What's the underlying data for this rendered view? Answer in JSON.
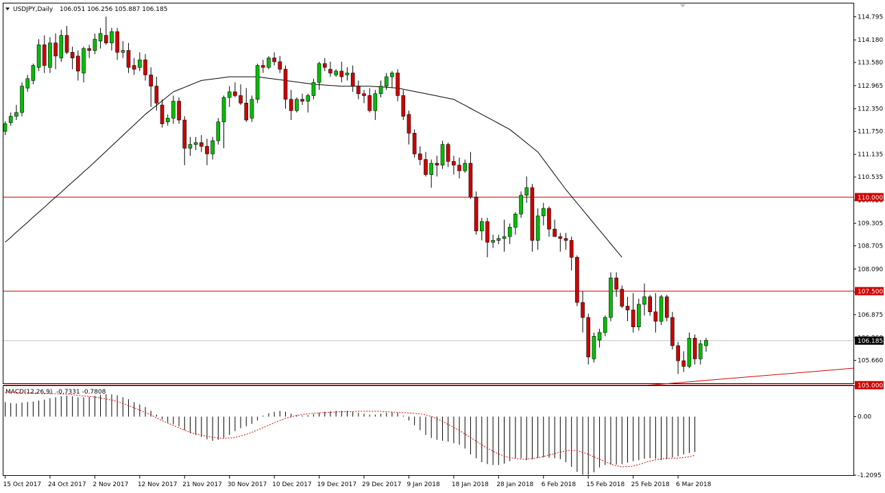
{
  "header": {
    "symbol": "USDJPY,Daily",
    "ohlc": "106.051 106.256 105.887 106.185"
  },
  "macd_header": {
    "label": "MACD(12,26,9)",
    "values": "-0.7331 -0.7808"
  },
  "colors": {
    "bull": "#00c000",
    "bear": "#d00000",
    "level_line": "#d00000",
    "ma_line": "#000000",
    "signal_line": "#d00000",
    "current_price_line": "#c0c0c0"
  },
  "price_axis_labels": [
    "114.795",
    "114.180",
    "113.580",
    "112.965",
    "112.350",
    "111.750",
    "111.135",
    "110.535",
    "109.920",
    "109.305",
    "108.705",
    "108.090",
    "107.475",
    "106.875",
    "106.260",
    "105.660"
  ],
  "macd_axis_labels": [
    "0.6313",
    "0.00",
    "-1.2095"
  ],
  "date_labels": [
    "15 Oct 2017",
    "24 Oct 2017",
    "2 Nov 2017",
    "12 Nov 2017",
    "21 Nov 2017",
    "30 Nov 2017",
    "10 Dec 2017",
    "19 Dec 2017",
    "29 Dec 2017",
    "9 Jan 2018",
    "18 Jan 2018",
    "28 Jan 2018",
    "6 Feb 2018",
    "15 Feb 2018",
    "25 Feb 2018",
    "6 Mar 2018"
  ],
  "tags": {
    "level_110": "110.000",
    "level_1075": "107.500",
    "current": "106.185",
    "level_105": "105.000"
  },
  "chart_data": {
    "type": "candlestick",
    "price_range": [
      105.05,
      115.15
    ],
    "macd_range": [
      -1.2095,
      0.6313
    ],
    "levels": [
      110.0,
      107.5,
      105.0
    ],
    "current_price": 106.185,
    "trendline": {
      "from": 105.0,
      "to": 105.45
    },
    "ohlc": [
      [
        111.75,
        112.02,
        111.65,
        111.95
      ],
      [
        111.98,
        112.25,
        111.9,
        112.15
      ],
      [
        112.15,
        112.45,
        112.05,
        112.25
      ],
      [
        112.25,
        113.05,
        112.15,
        112.95
      ],
      [
        112.9,
        113.25,
        112.8,
        113.15
      ],
      [
        113.1,
        113.55,
        113.0,
        113.5
      ],
      [
        113.45,
        114.2,
        113.35,
        114.05
      ],
      [
        114.05,
        114.3,
        113.3,
        113.5
      ],
      [
        113.45,
        114.25,
        113.3,
        114.1
      ],
      [
        114.1,
        114.35,
        113.4,
        113.75
      ],
      [
        113.7,
        114.45,
        113.6,
        114.3
      ],
      [
        114.3,
        114.55,
        113.8,
        113.85
      ],
      [
        113.85,
        114.0,
        113.4,
        113.7
      ],
      [
        113.75,
        113.9,
        113.1,
        113.35
      ],
      [
        113.3,
        114.0,
        113.05,
        113.95
      ],
      [
        113.95,
        114.05,
        113.7,
        113.9
      ],
      [
        113.9,
        114.35,
        113.8,
        114.2
      ],
      [
        114.15,
        114.5,
        113.95,
        114.35
      ],
      [
        114.3,
        114.8,
        114.05,
        114.1
      ],
      [
        114.1,
        114.5,
        113.9,
        114.4
      ],
      [
        114.4,
        114.5,
        113.65,
        113.85
      ],
      [
        113.85,
        114.15,
        113.7,
        113.9
      ],
      [
        113.9,
        114.1,
        113.3,
        113.45
      ],
      [
        113.5,
        113.7,
        113.25,
        113.4
      ],
      [
        113.45,
        113.85,
        113.35,
        113.65
      ],
      [
        113.65,
        113.8,
        113.1,
        113.25
      ],
      [
        113.25,
        113.45,
        112.4,
        112.95
      ],
      [
        112.95,
        113.2,
        112.3,
        112.5
      ],
      [
        112.45,
        112.6,
        111.85,
        111.95
      ],
      [
        112.0,
        112.2,
        111.9,
        112.1
      ],
      [
        112.1,
        112.7,
        111.95,
        112.55
      ],
      [
        112.55,
        112.65,
        111.95,
        112.05
      ],
      [
        112.05,
        112.15,
        110.85,
        111.3
      ],
      [
        111.3,
        111.6,
        111.1,
        111.4
      ],
      [
        111.4,
        111.6,
        111.25,
        111.45
      ],
      [
        111.45,
        111.65,
        111.2,
        111.35
      ],
      [
        111.35,
        111.55,
        110.85,
        111.15
      ],
      [
        111.15,
        111.6,
        111.0,
        111.5
      ],
      [
        111.5,
        112.1,
        111.4,
        112.0
      ],
      [
        112.0,
        112.7,
        111.3,
        112.65
      ],
      [
        112.65,
        112.95,
        112.4,
        112.8
      ],
      [
        112.8,
        113.05,
        112.65,
        112.7
      ],
      [
        112.7,
        113.0,
        112.45,
        112.5
      ],
      [
        112.5,
        112.9,
        112.0,
        112.05
      ],
      [
        112.1,
        112.7,
        112.0,
        112.6
      ],
      [
        112.6,
        113.55,
        112.5,
        113.5
      ],
      [
        113.5,
        113.65,
        113.3,
        113.45
      ],
      [
        113.45,
        113.75,
        113.4,
        113.7
      ],
      [
        113.7,
        113.85,
        113.5,
        113.6
      ],
      [
        113.6,
        113.75,
        113.3,
        113.4
      ],
      [
        113.4,
        113.5,
        112.35,
        112.6
      ],
      [
        112.6,
        112.85,
        112.05,
        112.3
      ],
      [
        112.3,
        112.65,
        112.25,
        112.6
      ],
      [
        112.6,
        112.75,
        112.45,
        112.55
      ],
      [
        112.55,
        112.75,
        112.25,
        112.7
      ],
      [
        112.7,
        113.15,
        112.6,
        113.05
      ],
      [
        113.05,
        113.6,
        112.85,
        113.55
      ],
      [
        113.55,
        113.7,
        113.35,
        113.45
      ],
      [
        113.4,
        113.6,
        113.2,
        113.3
      ],
      [
        113.25,
        113.4,
        113.2,
        113.35
      ],
      [
        113.35,
        113.6,
        113.05,
        113.2
      ],
      [
        113.25,
        113.45,
        113.1,
        113.3
      ],
      [
        113.3,
        113.5,
        112.8,
        112.95
      ],
      [
        112.95,
        113.1,
        112.6,
        112.75
      ],
      [
        112.75,
        112.85,
        112.5,
        112.7
      ],
      [
        112.7,
        112.9,
        112.25,
        112.3
      ],
      [
        112.3,
        112.85,
        112.05,
        112.75
      ],
      [
        112.75,
        113.1,
        112.65,
        112.95
      ],
      [
        112.95,
        113.3,
        112.85,
        113.2
      ],
      [
        113.2,
        113.35,
        112.9,
        113.3
      ],
      [
        113.3,
        113.4,
        112.55,
        112.7
      ],
      [
        112.7,
        112.85,
        112.05,
        112.15
      ],
      [
        112.2,
        112.3,
        111.4,
        111.7
      ],
      [
        111.7,
        111.8,
        111.05,
        111.15
      ],
      [
        111.15,
        111.35,
        110.85,
        111.0
      ],
      [
        111.0,
        111.2,
        110.55,
        110.6
      ],
      [
        110.6,
        111.0,
        110.25,
        110.9
      ],
      [
        110.9,
        111.1,
        110.55,
        110.85
      ],
      [
        110.85,
        111.5,
        110.75,
        111.4
      ],
      [
        111.4,
        111.45,
        110.8,
        110.95
      ],
      [
        110.95,
        111.1,
        110.6,
        110.85
      ],
      [
        110.85,
        111.05,
        110.5,
        110.7
      ],
      [
        110.7,
        111.0,
        110.65,
        110.9
      ],
      [
        110.9,
        111.2,
        109.95,
        110.0
      ],
      [
        110.0,
        110.15,
        109.0,
        109.1
      ],
      [
        109.1,
        109.45,
        108.85,
        109.35
      ],
      [
        109.35,
        109.45,
        108.4,
        108.8
      ],
      [
        108.8,
        109.0,
        108.65,
        108.85
      ],
      [
        108.85,
        109.0,
        108.75,
        108.9
      ],
      [
        108.9,
        109.4,
        108.55,
        108.95
      ],
      [
        108.95,
        109.3,
        108.75,
        109.2
      ],
      [
        109.2,
        109.6,
        109.0,
        109.55
      ],
      [
        109.55,
        110.15,
        109.45,
        110.05
      ],
      [
        110.05,
        110.55,
        109.85,
        110.25
      ],
      [
        110.25,
        110.35,
        108.55,
        108.85
      ],
      [
        108.85,
        109.7,
        108.6,
        109.5
      ],
      [
        109.5,
        109.85,
        109.25,
        109.7
      ],
      [
        109.7,
        109.75,
        108.95,
        109.15
      ],
      [
        109.15,
        109.4,
        108.95,
        108.95
      ],
      [
        108.95,
        109.05,
        108.55,
        108.9
      ],
      [
        108.9,
        109.05,
        108.6,
        108.85
      ],
      [
        108.85,
        108.95,
        108.05,
        108.4
      ],
      [
        108.4,
        108.45,
        107.1,
        107.2
      ],
      [
        107.2,
        107.5,
        106.4,
        106.8
      ],
      [
        106.8,
        106.9,
        105.55,
        105.75
      ],
      [
        105.7,
        106.4,
        105.6,
        106.3
      ],
      [
        106.2,
        106.5,
        106.0,
        106.4
      ],
      [
        106.4,
        106.85,
        106.3,
        106.8
      ],
      [
        106.8,
        108.0,
        106.7,
        107.85
      ],
      [
        107.85,
        108.0,
        107.35,
        107.55
      ],
      [
        107.55,
        107.65,
        107.05,
        107.1
      ],
      [
        107.1,
        107.35,
        106.7,
        107.0
      ],
      [
        107.0,
        107.45,
        106.4,
        106.55
      ],
      [
        106.55,
        107.3,
        106.45,
        107.15
      ],
      [
        107.15,
        107.7,
        106.85,
        107.35
      ],
      [
        107.35,
        107.4,
        106.85,
        106.95
      ],
      [
        106.95,
        107.45,
        106.4,
        106.7
      ],
      [
        106.7,
        107.4,
        106.6,
        107.35
      ],
      [
        107.35,
        107.4,
        106.7,
        106.8
      ],
      [
        106.8,
        106.95,
        105.95,
        106.05
      ],
      [
        106.05,
        106.15,
        105.3,
        105.65
      ],
      [
        105.65,
        105.9,
        105.35,
        105.5
      ],
      [
        105.5,
        106.4,
        105.45,
        106.25
      ],
      [
        106.25,
        106.35,
        105.55,
        105.7
      ],
      [
        105.7,
        106.2,
        105.55,
        106.1
      ],
      [
        106.05,
        106.26,
        105.89,
        106.19
      ]
    ],
    "ma": [
      108.8,
      108.93,
      109.07,
      109.2,
      109.33,
      109.47,
      109.6,
      109.73,
      109.87,
      110.0,
      110.13,
      110.27,
      110.4,
      110.53,
      110.67,
      110.8,
      110.94,
      111.08,
      111.22,
      111.36,
      111.5,
      111.64,
      111.78,
      111.92,
      112.06,
      112.2,
      112.32,
      112.44,
      112.56,
      112.68,
      112.8,
      112.86,
      112.92,
      112.98,
      113.04,
      113.1,
      113.12,
      113.14,
      113.16,
      113.18,
      113.2,
      113.2,
      113.2,
      113.2,
      113.2,
      113.2,
      113.18,
      113.16,
      113.14,
      113.12,
      113.1,
      113.08,
      113.06,
      113.04,
      113.02,
      113.0,
      112.99,
      112.98,
      112.97,
      112.96,
      112.95,
      112.95,
      112.95,
      112.95,
      112.95,
      112.95,
      112.94,
      112.93,
      112.92,
      112.91,
      112.9,
      112.87,
      112.84,
      112.81,
      112.78,
      112.75,
      112.72,
      112.69,
      112.66,
      112.63,
      112.6,
      112.52,
      112.44,
      112.36,
      112.28,
      112.2,
      112.12,
      112.04,
      111.96,
      111.88,
      111.8,
      111.68,
      111.56,
      111.44,
      111.32,
      111.2,
      111.0,
      110.8,
      110.6,
      110.4,
      110.2,
      110.02,
      109.84,
      109.66,
      109.48,
      109.3,
      109.12,
      108.94,
      108.76,
      108.58,
      108.4
    ],
    "ma_start_index": 0,
    "macd_hist": [
      0.3,
      0.28,
      0.27,
      0.29,
      0.3,
      0.31,
      0.33,
      0.35,
      0.38,
      0.4,
      0.42,
      0.43,
      0.42,
      0.4,
      0.4,
      0.41,
      0.43,
      0.45,
      0.46,
      0.46,
      0.44,
      0.4,
      0.36,
      0.3,
      0.25,
      0.2,
      0.12,
      0.04,
      -0.06,
      -0.12,
      -0.16,
      -0.2,
      -0.28,
      -0.34,
      -0.38,
      -0.42,
      -0.47,
      -0.5,
      -0.48,
      -0.44,
      -0.38,
      -0.3,
      -0.24,
      -0.2,
      -0.15,
      -0.08,
      0.02,
      0.07,
      0.1,
      0.12,
      0.1,
      0.06,
      0.03,
      0.02,
      0.03,
      0.05,
      0.08,
      0.1,
      0.11,
      0.12,
      0.12,
      0.12,
      0.1,
      0.08,
      0.06,
      0.04,
      0.04,
      0.06,
      0.08,
      0.1,
      0.08,
      0.02,
      -0.08,
      -0.18,
      -0.28,
      -0.38,
      -0.44,
      -0.48,
      -0.5,
      -0.52,
      -0.55,
      -0.58,
      -0.66,
      -0.78,
      -0.86,
      -0.94,
      -0.98,
      -1.0,
      -1.0,
      -0.97,
      -0.92,
      -0.86,
      -0.86,
      -0.9,
      -0.88,
      -0.85,
      -0.84,
      -0.85,
      -0.86,
      -0.88,
      -0.94,
      -1.04,
      -1.14,
      -1.2,
      -1.2,
      -1.15,
      -1.05,
      -1.0,
      -0.99,
      -0.99,
      -0.98,
      -0.95,
      -0.92,
      -0.9,
      -0.87,
      -0.86,
      -0.87,
      -0.9,
      -0.88,
      -0.84,
      -0.82,
      -0.78,
      -0.75,
      -0.73
    ],
    "macd_signal": [
      0.5,
      0.5,
      0.49,
      0.49,
      0.48,
      0.48,
      0.47,
      0.46,
      0.44,
      0.42,
      0.4,
      0.37,
      0.33,
      0.27,
      0.2,
      0.12,
      0.04,
      -0.06,
      -0.14,
      -0.22,
      -0.3,
      -0.36,
      -0.4,
      -0.43,
      -0.45,
      -0.44,
      -0.4,
      -0.34,
      -0.26,
      -0.18,
      -0.1,
      -0.03,
      0.02,
      0.05,
      0.07,
      0.08,
      0.09,
      0.1,
      0.1,
      0.11,
      0.11,
      0.11,
      0.1,
      0.09,
      0.08,
      0.07,
      0.05,
      0.0,
      -0.08,
      -0.18,
      -0.28,
      -0.4,
      -0.52,
      -0.64,
      -0.74,
      -0.82,
      -0.86,
      -0.88,
      -0.87,
      -0.84,
      -0.79,
      -0.74,
      -0.7,
      -0.7,
      -0.76,
      -0.84,
      -0.92,
      -1.0,
      -1.04,
      -1.03,
      -0.98,
      -0.92,
      -0.88,
      -0.86,
      -0.86,
      -0.84,
      -0.8
    ]
  }
}
